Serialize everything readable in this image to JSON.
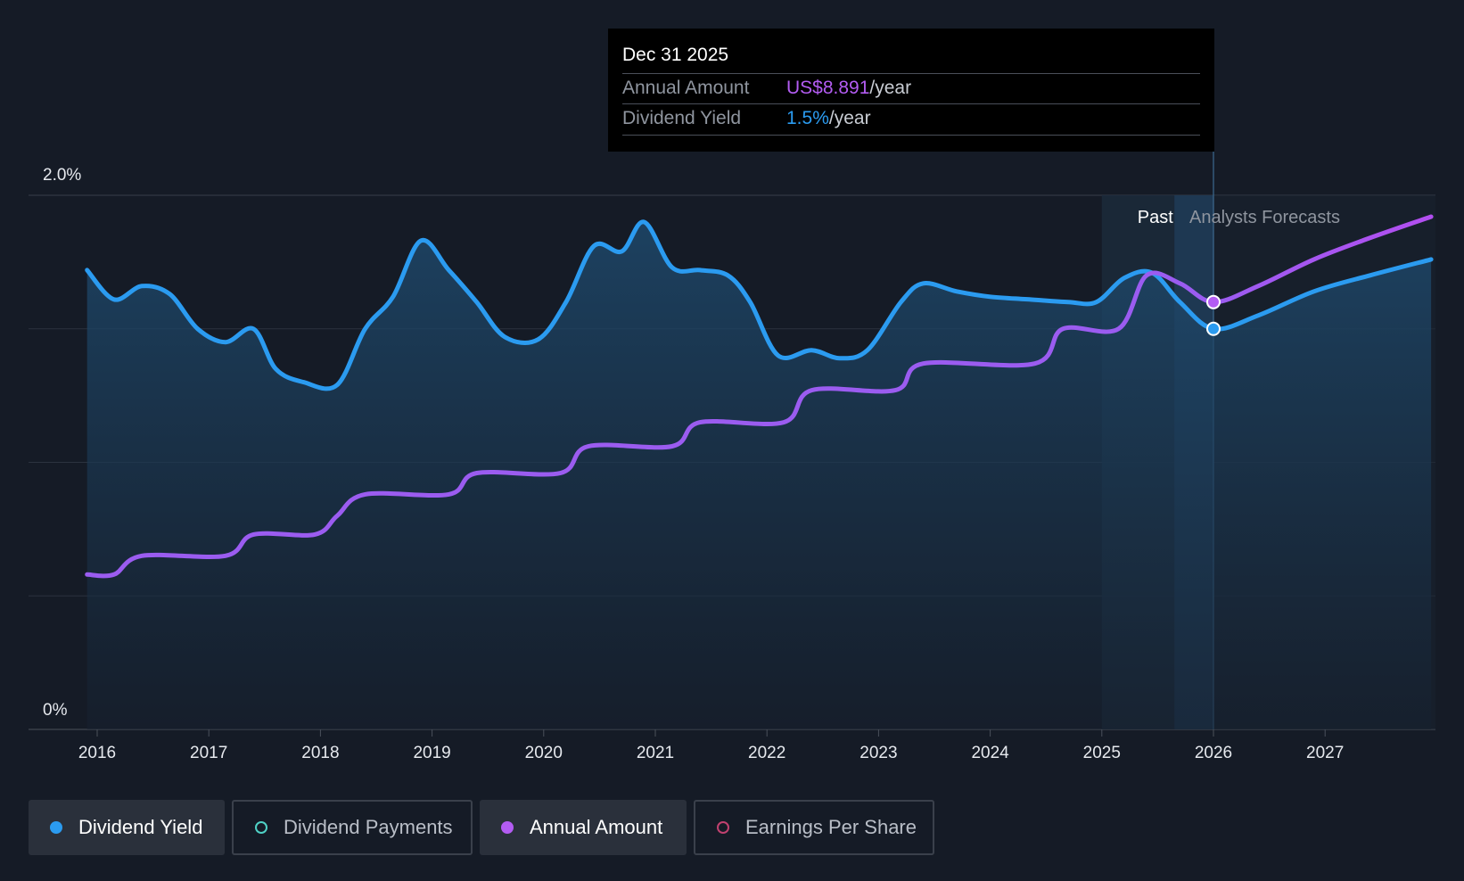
{
  "chart_data": {
    "type": "line",
    "y_axis": {
      "labels": [
        "2.0%",
        "0%"
      ],
      "min": 0,
      "max": 2.0
    },
    "x_axis": {
      "ticks": [
        "2016",
        "2017",
        "2018",
        "2019",
        "2020",
        "2021",
        "2022",
        "2023",
        "2024",
        "2025",
        "2026",
        "2027"
      ]
    },
    "regions": {
      "past_label": "Past",
      "forecast_label": "Analysts Forecasts"
    },
    "series": [
      {
        "name": "Dividend Yield",
        "color": "#2b9bf0",
        "area": true,
        "points": [
          [
            2015.91,
            1.72
          ],
          [
            2016.15,
            1.61
          ],
          [
            2016.4,
            1.66
          ],
          [
            2016.65,
            1.63
          ],
          [
            2016.9,
            1.5
          ],
          [
            2017.15,
            1.45
          ],
          [
            2017.4,
            1.5
          ],
          [
            2017.6,
            1.35
          ],
          [
            2017.85,
            1.3
          ],
          [
            2018.15,
            1.29
          ],
          [
            2018.4,
            1.5
          ],
          [
            2018.65,
            1.62
          ],
          [
            2018.9,
            1.83
          ],
          [
            2019.15,
            1.72
          ],
          [
            2019.4,
            1.6
          ],
          [
            2019.65,
            1.47
          ],
          [
            2019.95,
            1.46
          ],
          [
            2020.2,
            1.6
          ],
          [
            2020.45,
            1.81
          ],
          [
            2020.7,
            1.79
          ],
          [
            2020.9,
            1.9
          ],
          [
            2021.15,
            1.73
          ],
          [
            2021.4,
            1.72
          ],
          [
            2021.65,
            1.7
          ],
          [
            2021.85,
            1.6
          ],
          [
            2022.1,
            1.4
          ],
          [
            2022.4,
            1.42
          ],
          [
            2022.65,
            1.39
          ],
          [
            2022.9,
            1.42
          ],
          [
            2023.2,
            1.6
          ],
          [
            2023.4,
            1.67
          ],
          [
            2023.7,
            1.64
          ],
          [
            2024.0,
            1.62
          ],
          [
            2024.35,
            1.61
          ],
          [
            2024.7,
            1.6
          ],
          [
            2024.95,
            1.6
          ],
          [
            2025.2,
            1.69
          ],
          [
            2025.45,
            1.71
          ],
          [
            2025.7,
            1.6
          ],
          [
            2026.0,
            1.5
          ],
          [
            2026.4,
            1.55
          ],
          [
            2026.9,
            1.64
          ],
          [
            2027.4,
            1.7
          ],
          [
            2027.95,
            1.76
          ]
        ]
      },
      {
        "name": "Annual Amount",
        "color": "#9b5cf0",
        "color_forecast": "#b34ef0",
        "area": false,
        "points": [
          [
            2015.91,
            0.58
          ],
          [
            2016.15,
            0.58
          ],
          [
            2016.4,
            0.65
          ],
          [
            2017.15,
            0.65
          ],
          [
            2017.4,
            0.73
          ],
          [
            2017.95,
            0.73
          ],
          [
            2018.15,
            0.8
          ],
          [
            2018.4,
            0.88
          ],
          [
            2019.15,
            0.88
          ],
          [
            2019.4,
            0.96
          ],
          [
            2020.15,
            0.96
          ],
          [
            2020.4,
            1.06
          ],
          [
            2021.15,
            1.06
          ],
          [
            2021.4,
            1.15
          ],
          [
            2022.15,
            1.15
          ],
          [
            2022.4,
            1.27
          ],
          [
            2023.15,
            1.27
          ],
          [
            2023.4,
            1.37
          ],
          [
            2024.4,
            1.37
          ],
          [
            2024.65,
            1.5
          ],
          [
            2025.15,
            1.5
          ],
          [
            2025.4,
            1.7
          ],
          [
            2025.7,
            1.67
          ],
          [
            2026.0,
            1.6
          ],
          [
            2026.4,
            1.66
          ],
          [
            2026.9,
            1.76
          ],
          [
            2027.4,
            1.84
          ],
          [
            2027.95,
            1.92
          ]
        ]
      }
    ]
  },
  "tooltip": {
    "date": "Dec 31 2025",
    "rows": [
      {
        "label": "Annual Amount",
        "value": "US$8.891",
        "suffix": "/year",
        "color": "#b35cf2"
      },
      {
        "label": "Dividend Yield",
        "value": "1.5%",
        "suffix": "/year",
        "color": "#2b9bf0"
      }
    ]
  },
  "legend": [
    {
      "label": "Dividend Yield",
      "color": "#2b9bf0",
      "filled": true,
      "active": true
    },
    {
      "label": "Dividend Payments",
      "color": "#4fd1c5",
      "filled": false,
      "active": false
    },
    {
      "label": "Annual Amount",
      "color": "#b35cf2",
      "filled": true,
      "active": true
    },
    {
      "label": "Earnings Per Share",
      "color": "#c0416f",
      "filled": false,
      "active": false
    }
  ]
}
